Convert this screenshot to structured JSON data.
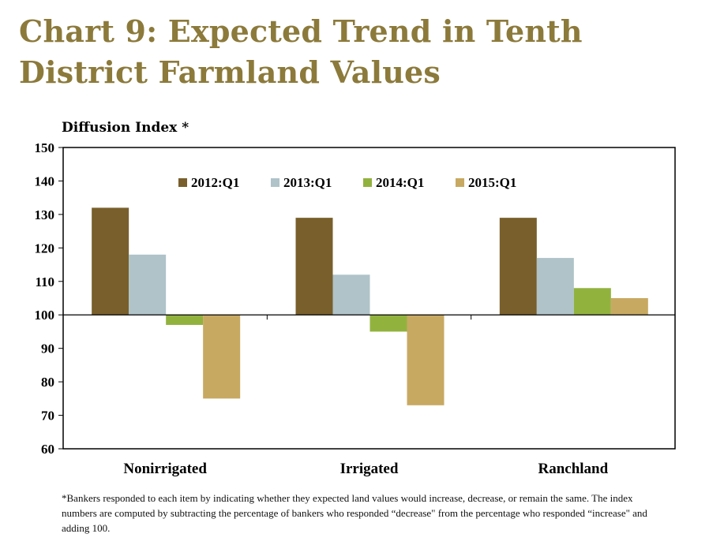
{
  "title": "Chart 9: Expected Trend in Tenth District Farmland Values",
  "footnote": "*Bankers responded to each item by indicating whether they expected land values would increase, decrease, or remain the same. The index numbers are computed by subtracting the percentage of bankers who responded “decrease\" from the percentage who responded “increase\" and adding 100.",
  "chart_data": {
    "type": "bar",
    "title": "Chart 9: Expected Trend in Tenth District Farmland Values",
    "ylabel": "Diffusion Index *",
    "xlabel": "",
    "ylim": [
      60,
      150
    ],
    "yticks": [
      60,
      70,
      80,
      90,
      100,
      110,
      120,
      130,
      140,
      150
    ],
    "baseline": 100,
    "grid": false,
    "legend_position": "top-center",
    "categories": [
      "Nonirrigated",
      "Irrigated",
      "Ranchland"
    ],
    "series": [
      {
        "name": "2012:Q1",
        "color": "#785f2b",
        "values": [
          132,
          129,
          129
        ]
      },
      {
        "name": "2013:Q1",
        "color": "#afc3c9",
        "values": [
          118,
          112,
          117
        ]
      },
      {
        "name": "2014:Q1",
        "color": "#92b23e",
        "values": [
          97,
          95,
          108
        ]
      },
      {
        "name": "2015:Q1",
        "color": "#c8a961",
        "values": [
          75,
          73,
          105
        ]
      }
    ]
  }
}
